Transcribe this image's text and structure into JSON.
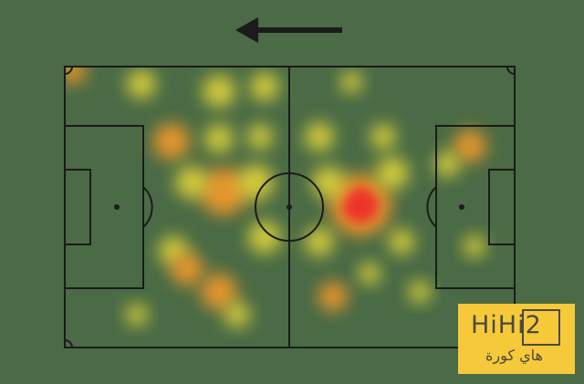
{
  "heatmap": {
    "attack_direction": "left",
    "colors": {
      "pitch": "#4a6b45",
      "lines": "#1b1b1b",
      "low": "#f2e23a",
      "mid": "#f59a2a",
      "high": "#ee2b2b"
    }
  },
  "watermark": {
    "brand": "HiHi2",
    "arabic": "هاي كورة",
    "color": "#f5c93a"
  }
}
